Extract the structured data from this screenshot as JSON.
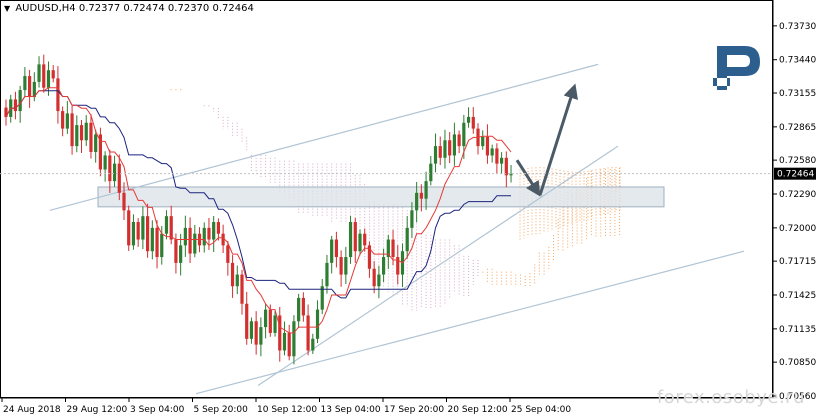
{
  "header": {
    "menu_icon": "triangle-down-icon",
    "symbol": "AUDUSD,H4",
    "ohlc": [
      "0.72377",
      "0.72474",
      "0.72370",
      "0.72464"
    ]
  },
  "price_axis": {
    "ticks": [
      "0.73730",
      "0.73440",
      "0.73155",
      "0.72865",
      "0.72580",
      "0.72290",
      "0.72000",
      "0.71715",
      "0.71425",
      "0.71135",
      "0.70850",
      "0.70560"
    ],
    "current_price": "0.72464"
  },
  "time_axis": {
    "labels": [
      "24 Aug 2018",
      "29 Aug 12:00",
      "3 Sep 04:00",
      "5 Sep 20:00",
      "10 Sep 12:00",
      "13 Sep 04:00",
      "17 Sep 20:00",
      "20 Sep 12:00",
      "25 Sep 04:00"
    ]
  },
  "logo": {
    "icon": "r-logo-icon"
  },
  "watermark": "forex.osobye.ru",
  "colors": {
    "bull": "#2e7d32",
    "bear": "#d32f2f",
    "tenkan": "#e53935",
    "kijun": "#1a237e",
    "cloud_a": "#f4a460",
    "cloud_b": "#d8a8c8",
    "channel": "#b0c4d4",
    "zone_fill": "#dde3ea",
    "zone_border": "#9fb0c2",
    "arrow": "#4a5a66",
    "logo": "#2c5f8d"
  },
  "chart_data": {
    "type": "candlestick",
    "instrument": "AUDUSD",
    "timeframe": "H4",
    "ylim": [
      0.7056,
      0.739
    ],
    "current_price": 0.72464,
    "support_zone": [
      0.7218,
      0.7235
    ],
    "projection_target": 0.732,
    "channel_upper": {
      "from": [
        "2018-08-24",
        0.721
      ],
      "to": [
        "2018-09-26",
        0.7333
      ]
    },
    "channel_lower": {
      "from": [
        "2018-09-05",
        0.7065
      ],
      "to": [
        "2018-09-26",
        0.719
      ]
    },
    "trend_support": {
      "from": [
        "2018-09-10",
        0.7077
      ],
      "to": [
        "2018-09-26",
        0.727
      ]
    },
    "closes": [
      0.7295,
      0.731,
      0.73,
      0.7318,
      0.733,
      0.7312,
      0.7325,
      0.734,
      0.732,
      0.7335,
      0.7328,
      0.73,
      0.7285,
      0.7298,
      0.727,
      0.7288,
      0.7275,
      0.729,
      0.7265,
      0.728,
      0.725,
      0.7262,
      0.724,
      0.7255,
      0.723,
      0.7215,
      0.7185,
      0.7205,
      0.719,
      0.721,
      0.718,
      0.72,
      0.7175,
      0.7195,
      0.721,
      0.719,
      0.717,
      0.7185,
      0.72,
      0.7178,
      0.7195,
      0.7185,
      0.72,
      0.719,
      0.7205,
      0.7195,
      0.7185,
      0.717,
      0.715,
      0.716,
      0.7135,
      0.7105,
      0.712,
      0.71,
      0.7115,
      0.713,
      0.711,
      0.7125,
      0.7095,
      0.711,
      0.709,
      0.712,
      0.714,
      0.7125,
      0.7095,
      0.7105,
      0.713,
      0.715,
      0.717,
      0.719,
      0.7175,
      0.716,
      0.7175,
      0.7205,
      0.718,
      0.7195,
      0.7185,
      0.7165,
      0.715,
      0.716,
      0.7175,
      0.719,
      0.7175,
      0.716,
      0.718,
      0.72,
      0.7215,
      0.723,
      0.7225,
      0.724,
      0.7255,
      0.727,
      0.726,
      0.7275,
      0.7262,
      0.728,
      0.727,
      0.729,
      0.7295,
      0.7285,
      0.727,
      0.7278,
      0.7262,
      0.7268,
      0.7255,
      0.726,
      0.7245,
      0.7246
    ]
  }
}
